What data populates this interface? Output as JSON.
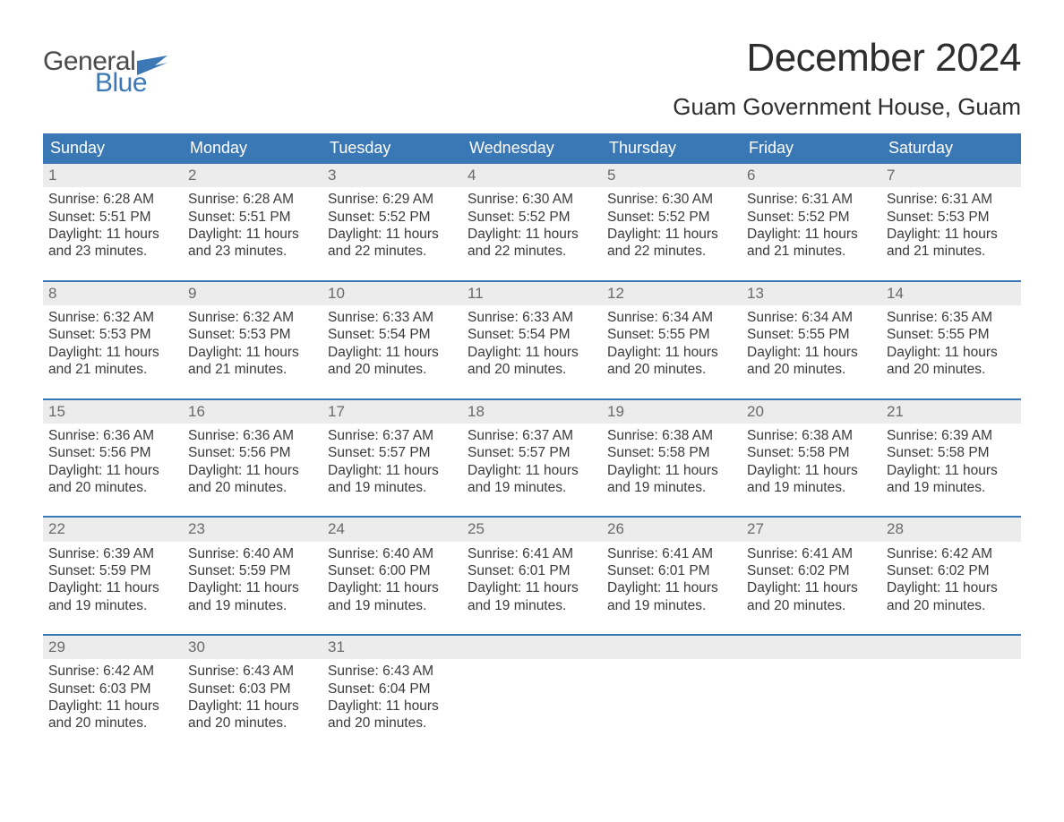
{
  "logo": {
    "top": "General",
    "bottom": "Blue"
  },
  "title": "December 2024",
  "location": "Guam Government House, Guam",
  "colors": {
    "header_bg": "#3a78b5",
    "header_text": "#ffffff",
    "daynum_bg": "#ececec",
    "daynum_text": "#6a6a6a",
    "body_text": "#3a3a3a",
    "week_border": "#3a78b5",
    "logo_gray": "#4a4a4a",
    "logo_blue": "#3b78b5"
  },
  "day_names": [
    "Sunday",
    "Monday",
    "Tuesday",
    "Wednesday",
    "Thursday",
    "Friday",
    "Saturday"
  ],
  "weeks": [
    [
      {
        "n": "1",
        "sr": "Sunrise: 6:28 AM",
        "ss": "Sunset: 5:51 PM",
        "d1": "Daylight: 11 hours",
        "d2": "and 23 minutes."
      },
      {
        "n": "2",
        "sr": "Sunrise: 6:28 AM",
        "ss": "Sunset: 5:51 PM",
        "d1": "Daylight: 11 hours",
        "d2": "and 23 minutes."
      },
      {
        "n": "3",
        "sr": "Sunrise: 6:29 AM",
        "ss": "Sunset: 5:52 PM",
        "d1": "Daylight: 11 hours",
        "d2": "and 22 minutes."
      },
      {
        "n": "4",
        "sr": "Sunrise: 6:30 AM",
        "ss": "Sunset: 5:52 PM",
        "d1": "Daylight: 11 hours",
        "d2": "and 22 minutes."
      },
      {
        "n": "5",
        "sr": "Sunrise: 6:30 AM",
        "ss": "Sunset: 5:52 PM",
        "d1": "Daylight: 11 hours",
        "d2": "and 22 minutes."
      },
      {
        "n": "6",
        "sr": "Sunrise: 6:31 AM",
        "ss": "Sunset: 5:52 PM",
        "d1": "Daylight: 11 hours",
        "d2": "and 21 minutes."
      },
      {
        "n": "7",
        "sr": "Sunrise: 6:31 AM",
        "ss": "Sunset: 5:53 PM",
        "d1": "Daylight: 11 hours",
        "d2": "and 21 minutes."
      }
    ],
    [
      {
        "n": "8",
        "sr": "Sunrise: 6:32 AM",
        "ss": "Sunset: 5:53 PM",
        "d1": "Daylight: 11 hours",
        "d2": "and 21 minutes."
      },
      {
        "n": "9",
        "sr": "Sunrise: 6:32 AM",
        "ss": "Sunset: 5:53 PM",
        "d1": "Daylight: 11 hours",
        "d2": "and 21 minutes."
      },
      {
        "n": "10",
        "sr": "Sunrise: 6:33 AM",
        "ss": "Sunset: 5:54 PM",
        "d1": "Daylight: 11 hours",
        "d2": "and 20 minutes."
      },
      {
        "n": "11",
        "sr": "Sunrise: 6:33 AM",
        "ss": "Sunset: 5:54 PM",
        "d1": "Daylight: 11 hours",
        "d2": "and 20 minutes."
      },
      {
        "n": "12",
        "sr": "Sunrise: 6:34 AM",
        "ss": "Sunset: 5:55 PM",
        "d1": "Daylight: 11 hours",
        "d2": "and 20 minutes."
      },
      {
        "n": "13",
        "sr": "Sunrise: 6:34 AM",
        "ss": "Sunset: 5:55 PM",
        "d1": "Daylight: 11 hours",
        "d2": "and 20 minutes."
      },
      {
        "n": "14",
        "sr": "Sunrise: 6:35 AM",
        "ss": "Sunset: 5:55 PM",
        "d1": "Daylight: 11 hours",
        "d2": "and 20 minutes."
      }
    ],
    [
      {
        "n": "15",
        "sr": "Sunrise: 6:36 AM",
        "ss": "Sunset: 5:56 PM",
        "d1": "Daylight: 11 hours",
        "d2": "and 20 minutes."
      },
      {
        "n": "16",
        "sr": "Sunrise: 6:36 AM",
        "ss": "Sunset: 5:56 PM",
        "d1": "Daylight: 11 hours",
        "d2": "and 20 minutes."
      },
      {
        "n": "17",
        "sr": "Sunrise: 6:37 AM",
        "ss": "Sunset: 5:57 PM",
        "d1": "Daylight: 11 hours",
        "d2": "and 19 minutes."
      },
      {
        "n": "18",
        "sr": "Sunrise: 6:37 AM",
        "ss": "Sunset: 5:57 PM",
        "d1": "Daylight: 11 hours",
        "d2": "and 19 minutes."
      },
      {
        "n": "19",
        "sr": "Sunrise: 6:38 AM",
        "ss": "Sunset: 5:58 PM",
        "d1": "Daylight: 11 hours",
        "d2": "and 19 minutes."
      },
      {
        "n": "20",
        "sr": "Sunrise: 6:38 AM",
        "ss": "Sunset: 5:58 PM",
        "d1": "Daylight: 11 hours",
        "d2": "and 19 minutes."
      },
      {
        "n": "21",
        "sr": "Sunrise: 6:39 AM",
        "ss": "Sunset: 5:58 PM",
        "d1": "Daylight: 11 hours",
        "d2": "and 19 minutes."
      }
    ],
    [
      {
        "n": "22",
        "sr": "Sunrise: 6:39 AM",
        "ss": "Sunset: 5:59 PM",
        "d1": "Daylight: 11 hours",
        "d2": "and 19 minutes."
      },
      {
        "n": "23",
        "sr": "Sunrise: 6:40 AM",
        "ss": "Sunset: 5:59 PM",
        "d1": "Daylight: 11 hours",
        "d2": "and 19 minutes."
      },
      {
        "n": "24",
        "sr": "Sunrise: 6:40 AM",
        "ss": "Sunset: 6:00 PM",
        "d1": "Daylight: 11 hours",
        "d2": "and 19 minutes."
      },
      {
        "n": "25",
        "sr": "Sunrise: 6:41 AM",
        "ss": "Sunset: 6:01 PM",
        "d1": "Daylight: 11 hours",
        "d2": "and 19 minutes."
      },
      {
        "n": "26",
        "sr": "Sunrise: 6:41 AM",
        "ss": "Sunset: 6:01 PM",
        "d1": "Daylight: 11 hours",
        "d2": "and 19 minutes."
      },
      {
        "n": "27",
        "sr": "Sunrise: 6:41 AM",
        "ss": "Sunset: 6:02 PM",
        "d1": "Daylight: 11 hours",
        "d2": "and 20 minutes."
      },
      {
        "n": "28",
        "sr": "Sunrise: 6:42 AM",
        "ss": "Sunset: 6:02 PM",
        "d1": "Daylight: 11 hours",
        "d2": "and 20 minutes."
      }
    ],
    [
      {
        "n": "29",
        "sr": "Sunrise: 6:42 AM",
        "ss": "Sunset: 6:03 PM",
        "d1": "Daylight: 11 hours",
        "d2": "and 20 minutes."
      },
      {
        "n": "30",
        "sr": "Sunrise: 6:43 AM",
        "ss": "Sunset: 6:03 PM",
        "d1": "Daylight: 11 hours",
        "d2": "and 20 minutes."
      },
      {
        "n": "31",
        "sr": "Sunrise: 6:43 AM",
        "ss": "Sunset: 6:04 PM",
        "d1": "Daylight: 11 hours",
        "d2": "and 20 minutes."
      },
      null,
      null,
      null,
      null
    ]
  ]
}
